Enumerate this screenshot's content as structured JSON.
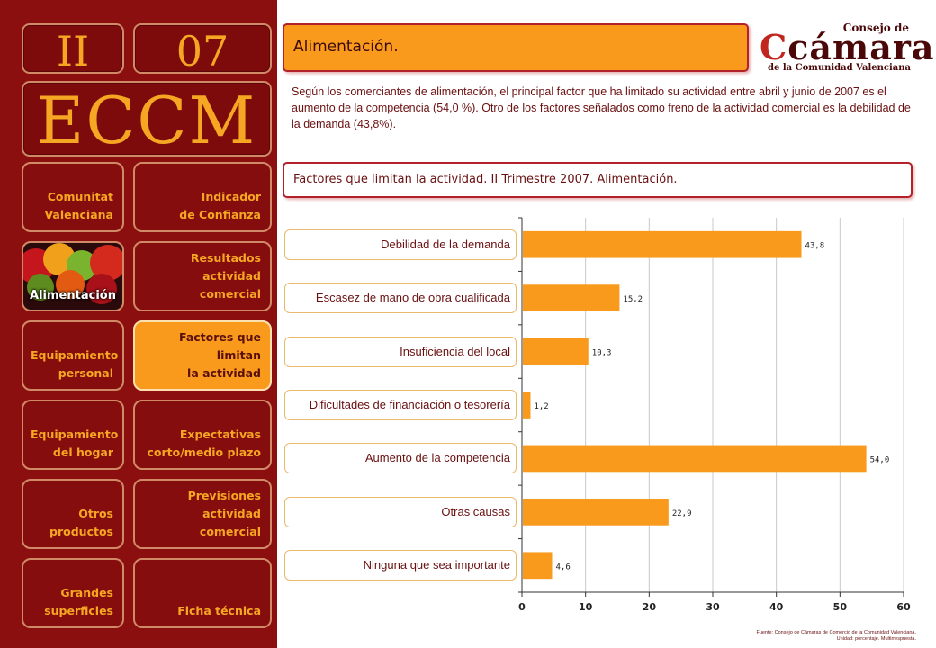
{
  "sidebar": {
    "section_number": "II",
    "page_number": "07",
    "acronym": "ECCM",
    "nav": [
      {
        "label": "Comunitat\nValenciana"
      },
      {
        "label": "Indicador\nde Confianza"
      },
      {
        "label": "Alimentación"
      },
      {
        "label": "Resultados actividad\ncomercial"
      },
      {
        "label": "Equipamiento\npersonal"
      },
      {
        "label": "Factores que limitan\nla actividad"
      },
      {
        "label": "Equipamiento\ndel hogar"
      },
      {
        "label": "Expectativas\ncorto/medio plazo"
      },
      {
        "label": "Otros\nproductos"
      },
      {
        "label": "Previsiones actividad\ncomercial"
      },
      {
        "label": "Grandes\nsuperficies"
      },
      {
        "label": "Ficha técnica"
      }
    ]
  },
  "header": {
    "section_title": "Alimentación.",
    "description": "Según los comerciantes de alimentación, el principal factor que ha limitado su actividad entre abril y junio de 2007 es el aumento de la competencia (54,0 %). Otro de los factores señalados como freno de la actividad comercial es la debilidad de la demanda (43,8%)."
  },
  "logo": {
    "top": "Consejo de",
    "main_initial": "C",
    "main_rest": "cámaras",
    "sub": "de la Comunidad Valenciana"
  },
  "colors": {
    "accent": "#f99a1c",
    "sidebar": "#8b0f0f",
    "text": "#6a1010"
  },
  "chart_data": {
    "type": "bar",
    "orientation": "horizontal",
    "title": "Factores que limitan la actividad. II Trimestre 2007. Alimentación.",
    "categories": [
      "Debilidad de la demanda",
      "Escasez de mano de obra cualificada",
      "Insuficiencia del local",
      "Dificultades de financiación o tesorería",
      "Aumento de la competencia",
      "Otras causas",
      "Ninguna que sea importante"
    ],
    "values": [
      43.8,
      15.2,
      10.3,
      1.2,
      54.0,
      22.9,
      4.6
    ],
    "value_labels": [
      "43,8",
      "15,2",
      "10,3",
      "1,2",
      "54,0",
      "22,9",
      "4,6"
    ],
    "xlim": [
      0,
      60
    ],
    "xticks": [
      "0",
      "10",
      "20",
      "30",
      "40",
      "50",
      "60"
    ],
    "grid": true,
    "bar_color": "#f99a1c"
  },
  "footer": {
    "source_line1": "Fuente: Consejo de Cámaras de Comercio de la Comunidad Valenciana.",
    "source_line2": "Unidad: porcentaje. Multirrespuesta."
  }
}
